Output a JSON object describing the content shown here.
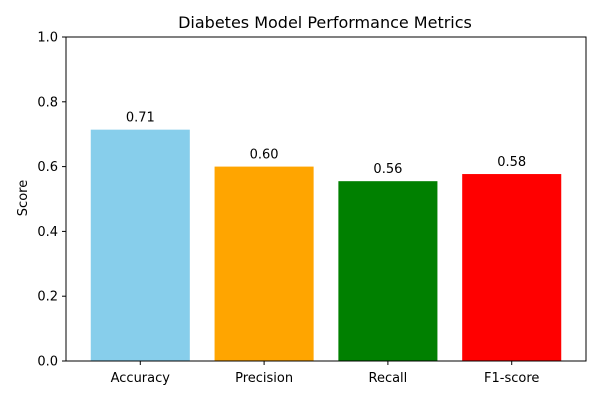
{
  "chart_data": {
    "type": "bar",
    "title": "Diabetes Model Performance Metrics",
    "xlabel": "",
    "ylabel": "Score",
    "categories": [
      "Accuracy",
      "Precision",
      "Recall",
      "F1-score"
    ],
    "values": [
      0.714,
      0.6,
      0.555,
      0.577
    ],
    "value_labels": [
      "0.71",
      "0.60",
      "0.56",
      "0.58"
    ],
    "colors": [
      "#87ceeb",
      "#ffa500",
      "#008000",
      "#ff0000"
    ],
    "ylim": [
      0,
      1.0
    ],
    "yticks": [
      "0.0",
      "0.2",
      "0.4",
      "0.6",
      "0.8",
      "1.0"
    ],
    "grid": false
  }
}
